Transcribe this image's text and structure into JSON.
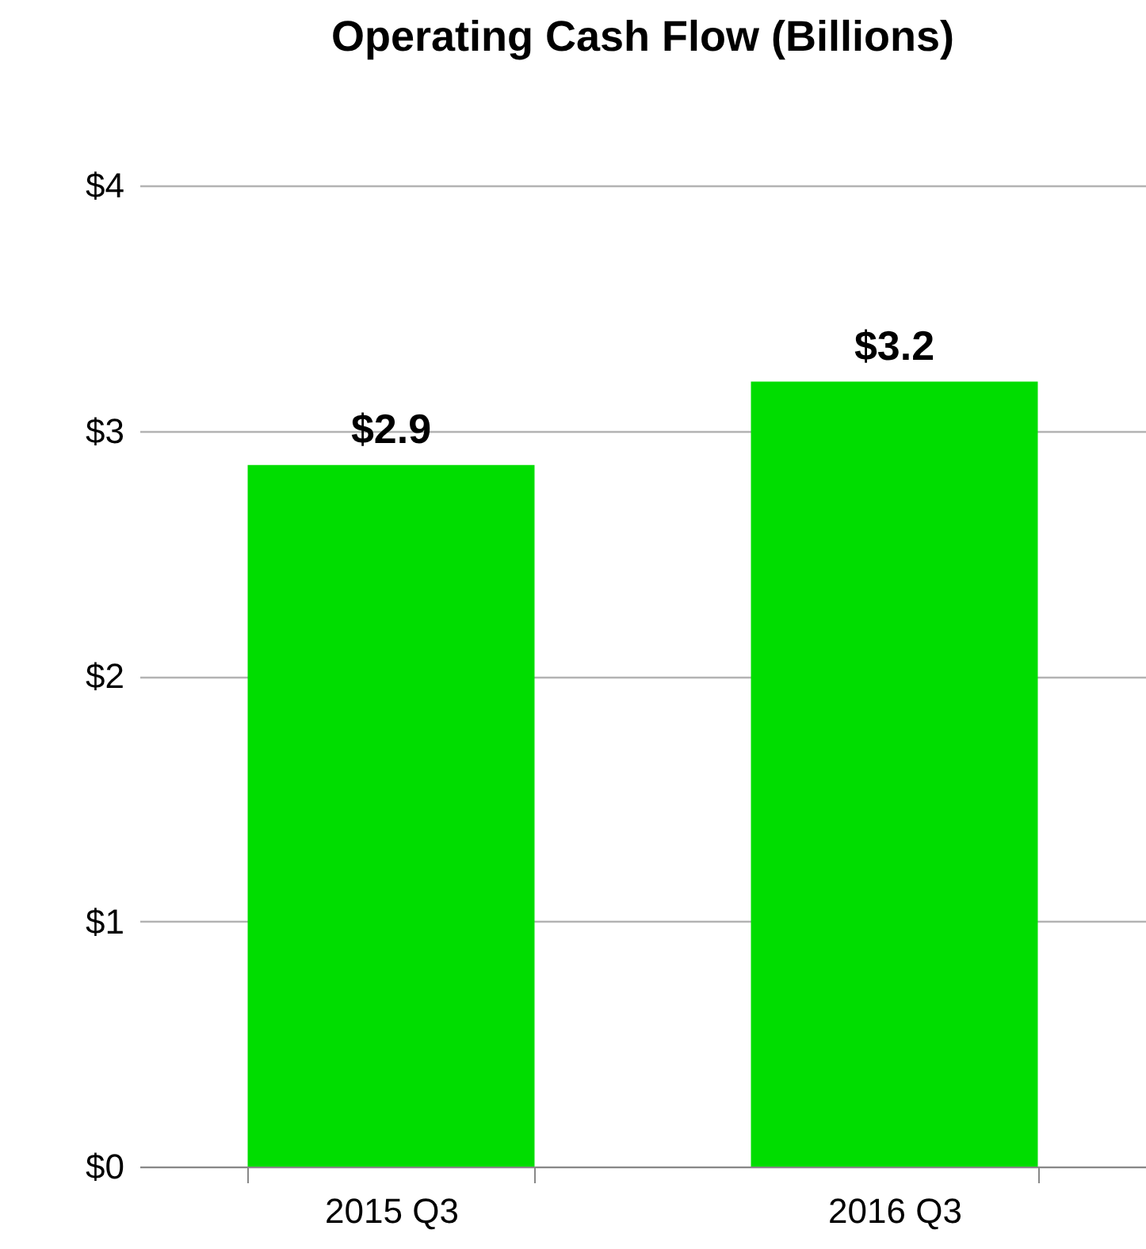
{
  "chart_data": {
    "type": "bar",
    "title": "Operating Cash Flow (Billions)",
    "categories": [
      "2015 Q3",
      "2016 Q3"
    ],
    "values": [
      2.86,
      3.2
    ],
    "value_labels": [
      "$2.9",
      "$3.2"
    ],
    "color": "#00dd00",
    "ylim": [
      0,
      4
    ],
    "yticks": [
      {
        "value": 0,
        "label": "$0"
      },
      {
        "value": 1,
        "label": "$1"
      },
      {
        "value": 2,
        "label": "$2"
      },
      {
        "value": 3,
        "label": "$3"
      },
      {
        "value": 4,
        "label": "$4"
      }
    ],
    "grid": "y"
  }
}
